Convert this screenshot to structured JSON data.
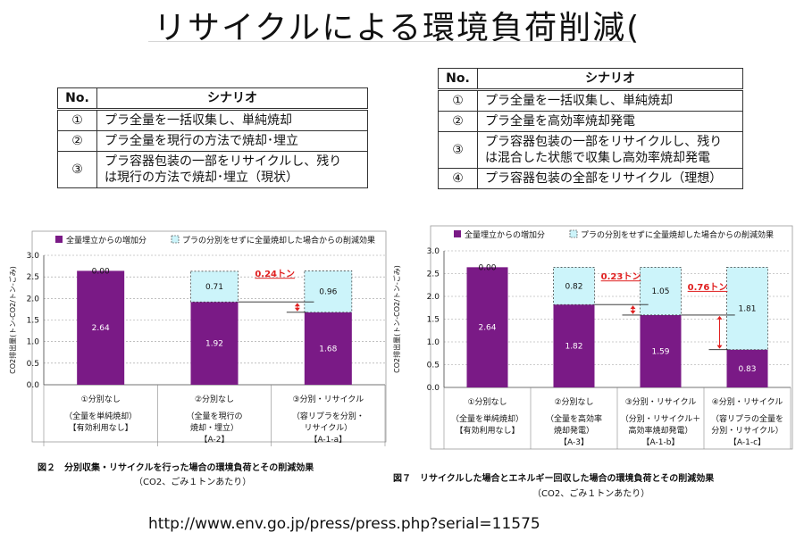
{
  "slide": {
    "title": "リサイクルによる環境負荷削減(",
    "url": "http://www.env.go.jp/press/press.php?serial=11575"
  },
  "tables": [
    {
      "headers": [
        "No.",
        "シナリオ"
      ],
      "rows": [
        {
          "no": "①",
          "text": "プラ全量を一括収集し、単純焼却"
        },
        {
          "no": "②",
          "text": "プラ全量を現行の方法で焼却･埋立"
        },
        {
          "no": "③",
          "text": "プラ容器包装の一部をリサイクルし、残り\nは現行の方法で焼却･埋立（現状）"
        }
      ]
    },
    {
      "headers": [
        "No.",
        "シナリオ"
      ],
      "rows": [
        {
          "no": "①",
          "text": "プラ全量を一括収集し、単純焼却"
        },
        {
          "no": "②",
          "text": "プラ全量を高効率焼却発電"
        },
        {
          "no": "③",
          "text": "プラ容器包装の一部をリサイクルし、残り\nは混合した状態で収集し高効率焼却発電"
        },
        {
          "no": "④",
          "text": "プラ容器包装の全部をリサイクル（理想）"
        }
      ]
    }
  ],
  "chart_data": [
    {
      "type": "bar",
      "stacked": true,
      "ylabel": "CO2排出量(トン-CO2/トン-ごみ)",
      "ylim": [
        0,
        3.0
      ],
      "yticks": [
        "0.0",
        "0.5",
        "1.0",
        "1.5",
        "2.0",
        "2.5",
        "3.0"
      ],
      "grid": true,
      "legend_position": "top",
      "colors": {
        "base": "#7a1a86",
        "reduction": "#ccf4fa",
        "arrow": "#e02020"
      },
      "series": [
        {
          "name": "全量埋立からの増加分",
          "values": [
            2.64,
            1.92,
            1.68
          ]
        },
        {
          "name": "プラの分別をせずに全量焼却した場合からの削減効果",
          "values": [
            0.0,
            0.71,
            0.96
          ]
        }
      ],
      "category_labels": [
        {
          "line1": "①分別なし",
          "line2": "（全量を単純焼却）",
          "line3": "【有効利用なし】",
          "line4": ""
        },
        {
          "line1": "②分別なし",
          "line2": "（全量を現行の",
          "line3": "焼却・埋立）",
          "line4": "【A-2】"
        },
        {
          "line1": "③分別・リサイクル",
          "line2": "（容リプラを分別・",
          "line3": "リサイクル）",
          "line4": "【A-1-a】"
        }
      ],
      "annotations": [
        {
          "text": "0.24トン",
          "from_category": 1,
          "to_category": 2
        }
      ],
      "caption": "図２　分別収集・リサイクルを行った場合の環境負荷とその削減効果",
      "caption_sub": "（CO2、ごみ１トンあたり）"
    },
    {
      "type": "bar",
      "stacked": true,
      "ylabel": "CO2排出量(トン-CO2/トン-ごみ)",
      "ylim": [
        0,
        3.0
      ],
      "yticks": [
        "0.0",
        "0.5",
        "1.0",
        "1.5",
        "2.0",
        "2.5",
        "3.0"
      ],
      "grid": true,
      "legend_position": "top",
      "colors": {
        "base": "#7a1a86",
        "reduction": "#ccf4fa",
        "arrow": "#e02020"
      },
      "series": [
        {
          "name": "全量埋立からの増加分",
          "values": [
            2.64,
            1.82,
            1.59,
            0.83
          ]
        },
        {
          "name": "プラの分別をせずに全量焼却した場合からの削減効果",
          "values": [
            0.0,
            0.82,
            1.05,
            1.81
          ]
        }
      ],
      "category_labels": [
        {
          "line1": "①分別なし",
          "line2": "（全量を単純焼却）",
          "line3": "【有効利用なし】",
          "line4": ""
        },
        {
          "line1": "②分別なし",
          "line2": "（全量を高効率",
          "line3": "焼却発電）",
          "line4": "【A-3】"
        },
        {
          "line1": "③分別・リサイクル",
          "line2": "（分別・リサイクル＋",
          "line3": "高効率焼却発電）",
          "line4": "【A-1-b】"
        },
        {
          "line1": "④分別・リサイクル",
          "line2": "（容リプラの全量を",
          "line3": "分別・リサイクル）",
          "line4": "【A-1-c】"
        }
      ],
      "annotations": [
        {
          "text": "0.23トン",
          "from_category": 1,
          "to_category": 2
        },
        {
          "text": "0.76トン",
          "from_category": 2,
          "to_category": 3
        }
      ],
      "caption": "図７　リサイクルした場合とエネルギー回収した場合の環境負荷とその削減効果",
      "caption_sub": "（CO2、ごみ１トンあたり）"
    }
  ]
}
